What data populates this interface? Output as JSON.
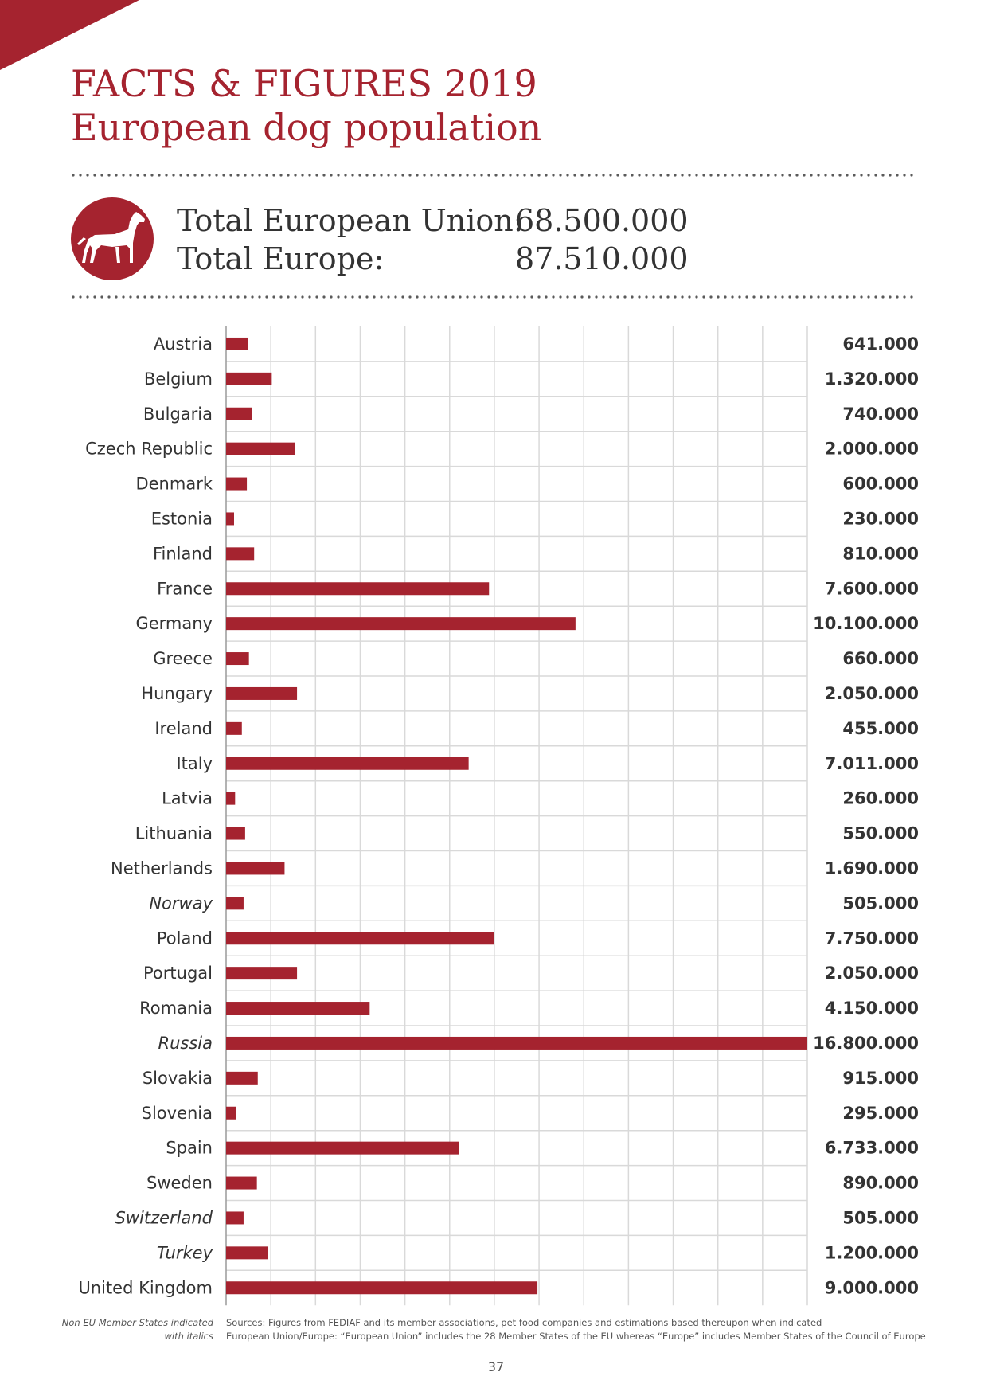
{
  "page": {
    "title_line1": "FACTS & FIGURES 2019",
    "title_line2": "European dog population",
    "colors": {
      "accent": "#a5232f",
      "grid": "#d9d9d9",
      "text": "#333333"
    },
    "icon": "dog-icon"
  },
  "totals": {
    "eu_label": "Total European Union:",
    "eu_value": "68.500.000",
    "europe_label": "Total Europe:",
    "europe_value": "87.510.000"
  },
  "chart_data": {
    "type": "bar",
    "orientation": "horizontal",
    "xlim": [
      0,
      16800000
    ],
    "grid": true,
    "categories": [
      "Austria",
      "Belgium",
      "Bulgaria",
      "Czech Republic",
      "Denmark",
      "Estonia",
      "Finland",
      "France",
      "Germany",
      "Greece",
      "Hungary",
      "Ireland",
      "Italy",
      "Latvia",
      "Lithuania",
      "Netherlands",
      "Norway",
      "Poland",
      "Portugal",
      "Romania",
      "Russia",
      "Slovakia",
      "Slovenia",
      "Spain",
      "Sweden",
      "Switzerland",
      "Turkey",
      "United Kingdom"
    ],
    "values": [
      641000,
      1320000,
      740000,
      2000000,
      600000,
      230000,
      810000,
      7600000,
      10100000,
      660000,
      2050000,
      455000,
      7011000,
      260000,
      550000,
      1690000,
      505000,
      7750000,
      2050000,
      4150000,
      16800000,
      915000,
      295000,
      6733000,
      890000,
      505000,
      1200000,
      9000000
    ],
    "value_labels": [
      "641.000",
      "1.320.000",
      "740.000",
      "2.000.000",
      "600.000",
      "230.000",
      "810.000",
      "7.600.000",
      "10.100.000",
      "660.000",
      "2.050.000",
      "455.000",
      "7.011.000",
      "260.000",
      "550.000",
      "1.690.000",
      "505.000",
      "7.750.000",
      "2.050.000",
      "4.150.000",
      "16.800.000",
      "915.000",
      "295.000",
      "6.733.000",
      "890.000",
      "505.000",
      "1.200.000",
      "9.000.000"
    ],
    "italic_categories": [
      "Norway",
      "Russia",
      "Switzerland",
      "Turkey"
    ]
  },
  "footnotes": {
    "left_line1": "Non EU Member States indicated",
    "left_line2": "with italics",
    "right_line1": "Sources: Figures from FEDIAF and its member associations, pet food companies and estimations based thereupon when indicated",
    "right_line2": "European Union/Europe:  “European Union” includes the 28 Member States of the EU whereas “Europe” includes Member States of the Council of Europe"
  },
  "page_number": "37"
}
